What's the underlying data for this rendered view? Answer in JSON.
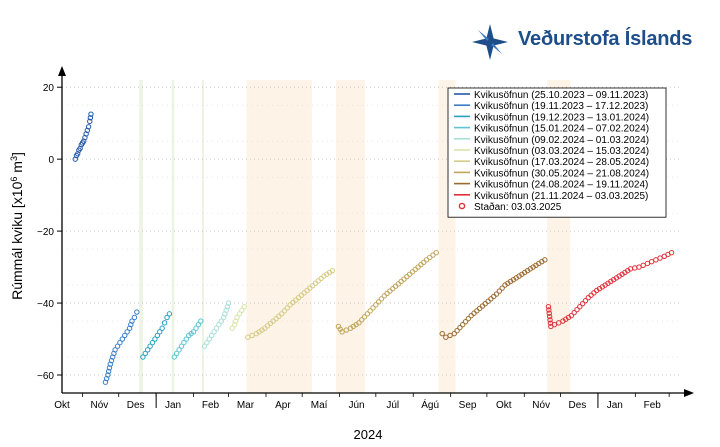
{
  "logo": {
    "text": "Veðurstofa Íslands",
    "color": "#1d4e89"
  },
  "chart_data": {
    "type": "scatter",
    "xlabel": "2024",
    "ylabel_parts": [
      "Rúmmál kviku [x10",
      "6",
      " m",
      "3",
      "]"
    ],
    "ylim": [
      -65,
      22
    ],
    "y_ticks": [
      20,
      0,
      -20,
      -40,
      -60
    ],
    "y_tick_labels": [
      "20",
      "0",
      "−20",
      "−40",
      "−60"
    ],
    "x_range": [
      "2023-10-15",
      "2025-03-10"
    ],
    "month_labels": [
      {
        "date": "2023-10-15",
        "label": "Okt"
      },
      {
        "date": "2023-11-15",
        "label": "Nóv"
      },
      {
        "date": "2023-12-15",
        "label": "Des"
      },
      {
        "date": "2024-01-15",
        "label": "Jan"
      },
      {
        "date": "2024-02-15",
        "label": "Feb"
      },
      {
        "date": "2024-03-15",
        "label": "Mar"
      },
      {
        "date": "2024-04-15",
        "label": "Apr"
      },
      {
        "date": "2024-05-15",
        "label": "Maí"
      },
      {
        "date": "2024-06-15",
        "label": "Jún"
      },
      {
        "date": "2024-07-15",
        "label": "Júl"
      },
      {
        "date": "2024-08-15",
        "label": "Ágú"
      },
      {
        "date": "2024-09-15",
        "label": "Sep"
      },
      {
        "date": "2024-10-15",
        "label": "Okt"
      },
      {
        "date": "2024-11-15",
        "label": "Nóv"
      },
      {
        "date": "2024-12-15",
        "label": "Des"
      },
      {
        "date": "2025-01-15",
        "label": "Jan"
      },
      {
        "date": "2025-02-15",
        "label": "Feb"
      }
    ],
    "month_boundaries": [
      "2023-11-01",
      "2023-12-01",
      "2024-01-01",
      "2024-02-01",
      "2024-03-01",
      "2024-04-01",
      "2024-05-01",
      "2024-06-01",
      "2024-07-01",
      "2024-08-01",
      "2024-09-01",
      "2024-10-01",
      "2024-11-01",
      "2024-12-01",
      "2025-01-01",
      "2025-02-01",
      "2025-03-01"
    ],
    "year_dividers": [
      "2024-01-01",
      "2025-01-01"
    ],
    "eruption_shading": [
      {
        "start": "2023-12-18",
        "end": "2023-12-21",
        "color": "#eef3e3"
      },
      {
        "start": "2024-01-14",
        "end": "2024-01-16",
        "color": "#eef3e3"
      },
      {
        "start": "2024-02-08",
        "end": "2024-02-09",
        "color": "#eef3e3"
      },
      {
        "start": "2024-03-16",
        "end": "2024-05-09",
        "color": "#fdf3e6"
      },
      {
        "start": "2024-05-29",
        "end": "2024-06-22",
        "color": "#fdf3e6"
      },
      {
        "start": "2024-08-22",
        "end": "2024-09-05",
        "color": "#fdf3e6"
      },
      {
        "start": "2024-11-20",
        "end": "2024-12-09",
        "color": "#fdf3e6"
      }
    ],
    "series": [
      {
        "name": "Kvikusöfnun (25.10.2023 – 09.11.2023)",
        "color": "#2458a8",
        "x": [
          "2023-10-26",
          "2023-10-27",
          "2023-10-28",
          "2023-10-29",
          "2023-10-30",
          "2023-10-31",
          "2023-11-01",
          "2023-11-02",
          "2023-11-03",
          "2023-11-04",
          "2023-11-05",
          "2023-11-06",
          "2023-11-07",
          "2023-11-08"
        ],
        "y": [
          0,
          1,
          1.5,
          2.5,
          3,
          4,
          4.5,
          5,
          6,
          7,
          8,
          9,
          10.5,
          12.5
        ]
      },
      {
        "name": "Kvikusöfnun (19.11.2023 – 17.12.2023)",
        "color": "#3a7fc8",
        "x": [
          "2023-11-20",
          "2023-11-22",
          "2023-11-24",
          "2023-11-26",
          "2023-11-28",
          "2023-11-30",
          "2023-12-02",
          "2023-12-04",
          "2023-12-06",
          "2023-12-08",
          "2023-12-10",
          "2023-12-12",
          "2023-12-14",
          "2023-12-16"
        ],
        "y": [
          -62,
          -60,
          -57,
          -55,
          -53,
          -52,
          -51,
          -50,
          -49,
          -48,
          -47,
          -45,
          -44,
          -42.5
        ]
      },
      {
        "name": "Kvikusöfnun (19.12.2023 – 13.01.2024)",
        "color": "#2aa0c0",
        "x": [
          "2023-12-21",
          "2023-12-23",
          "2023-12-25",
          "2023-12-27",
          "2023-12-29",
          "2023-12-31",
          "2024-01-02",
          "2024-01-04",
          "2024-01-06",
          "2024-01-08",
          "2024-01-10",
          "2024-01-12"
        ],
        "y": [
          -55,
          -54,
          -53,
          -52,
          -51,
          -50,
          -49,
          -48,
          -47,
          -45.5,
          -44,
          -43
        ]
      },
      {
        "name": "Kvikusöfnun (15.01.2024 – 07.02.2024)",
        "color": "#5cc4d2",
        "x": [
          "2024-01-16",
          "2024-01-18",
          "2024-01-20",
          "2024-01-22",
          "2024-01-24",
          "2024-01-26",
          "2024-01-28",
          "2024-01-30",
          "2024-02-01",
          "2024-02-03",
          "2024-02-05",
          "2024-02-07"
        ],
        "y": [
          -55,
          -54,
          -53,
          -52,
          -51,
          -50,
          -49,
          -48.5,
          -48,
          -47,
          -46,
          -45
        ]
      },
      {
        "name": "Kvikusöfnun (09.02.2024 – 01.03.2024)",
        "color": "#a8dfd8",
        "x": [
          "2024-02-10",
          "2024-02-12",
          "2024-02-14",
          "2024-02-16",
          "2024-02-18",
          "2024-02-20",
          "2024-02-22",
          "2024-02-24",
          "2024-02-26",
          "2024-02-28",
          "2024-03-01"
        ],
        "y": [
          -52,
          -51,
          -50,
          -49,
          -48,
          -47,
          -46,
          -45,
          -44,
          -42,
          -40
        ]
      },
      {
        "name": "Kvikusöfnun (03.03.2024 – 15.03.2024)",
        "color": "#d6e4a8",
        "x": [
          "2024-03-04",
          "2024-03-06",
          "2024-03-08",
          "2024-03-10",
          "2024-03-12",
          "2024-03-14"
        ],
        "y": [
          -47,
          -46,
          -44,
          -43,
          -42,
          -41
        ]
      },
      {
        "name": "Kvikusöfnun (17.03.2024 – 28.05.2024)",
        "color": "#d4cc84",
        "x": [
          "2024-03-17",
          "2024-03-24",
          "2024-03-31",
          "2024-04-07",
          "2024-04-14",
          "2024-04-21",
          "2024-04-28",
          "2024-05-05",
          "2024-05-12",
          "2024-05-19",
          "2024-05-26"
        ],
        "y": [
          -49.5,
          -48.5,
          -47,
          -45,
          -43,
          -40.5,
          -38.5,
          -36.5,
          -34.5,
          -32.5,
          -31
        ]
      },
      {
        "name": "Kvikusöfnun (30.05.2024 – 21.08.2024)",
        "color": "#c0a458",
        "x": [
          "2024-05-31",
          "2024-06-03",
          "2024-06-10",
          "2024-06-17",
          "2024-06-24",
          "2024-07-01",
          "2024-07-08",
          "2024-07-15",
          "2024-07-22",
          "2024-07-29",
          "2024-08-05",
          "2024-08-12",
          "2024-08-20"
        ],
        "y": [
          -46.5,
          -48,
          -47,
          -45.5,
          -43,
          -40.5,
          -38,
          -36,
          -34,
          -32,
          -30,
          -28,
          -26
        ]
      },
      {
        "name": "Kvikusöfnun (24.08.2024 – 19.11.2024)",
        "color": "#9b6a2e",
        "x": [
          "2024-08-25",
          "2024-08-28",
          "2024-09-04",
          "2024-09-11",
          "2024-09-18",
          "2024-09-25",
          "2024-10-02",
          "2024-10-09",
          "2024-10-16",
          "2024-10-23",
          "2024-10-30",
          "2024-11-06",
          "2024-11-13",
          "2024-11-18"
        ],
        "y": [
          -48.5,
          -49.5,
          -48.5,
          -46,
          -43.5,
          -41.5,
          -39.5,
          -37.5,
          -35,
          -33.5,
          -32,
          -30.5,
          -29,
          -28
        ]
      },
      {
        "name": "Kvikusöfnun (21.11.2024 – 03.03.2025)",
        "color": "#e0303a",
        "x": [
          "2024-11-21",
          "2024-11-23",
          "2024-11-26",
          "2024-12-03",
          "2024-12-10",
          "2024-12-17",
          "2024-12-24",
          "2024-12-31",
          "2025-01-07",
          "2025-01-14",
          "2025-01-21",
          "2025-01-28",
          "2025-02-04",
          "2025-02-11",
          "2025-02-18",
          "2025-02-25",
          "2025-03-03"
        ],
        "y": [
          -41,
          -46.5,
          -46,
          -45,
          -43.5,
          -41,
          -38.5,
          -36.5,
          -35,
          -33.5,
          -32,
          -30.5,
          -30,
          -29,
          -28,
          -27,
          -26
        ]
      }
    ],
    "status_legend": {
      "name": "Staðan: 03.03.2025",
      "color": "#e0303a"
    }
  }
}
